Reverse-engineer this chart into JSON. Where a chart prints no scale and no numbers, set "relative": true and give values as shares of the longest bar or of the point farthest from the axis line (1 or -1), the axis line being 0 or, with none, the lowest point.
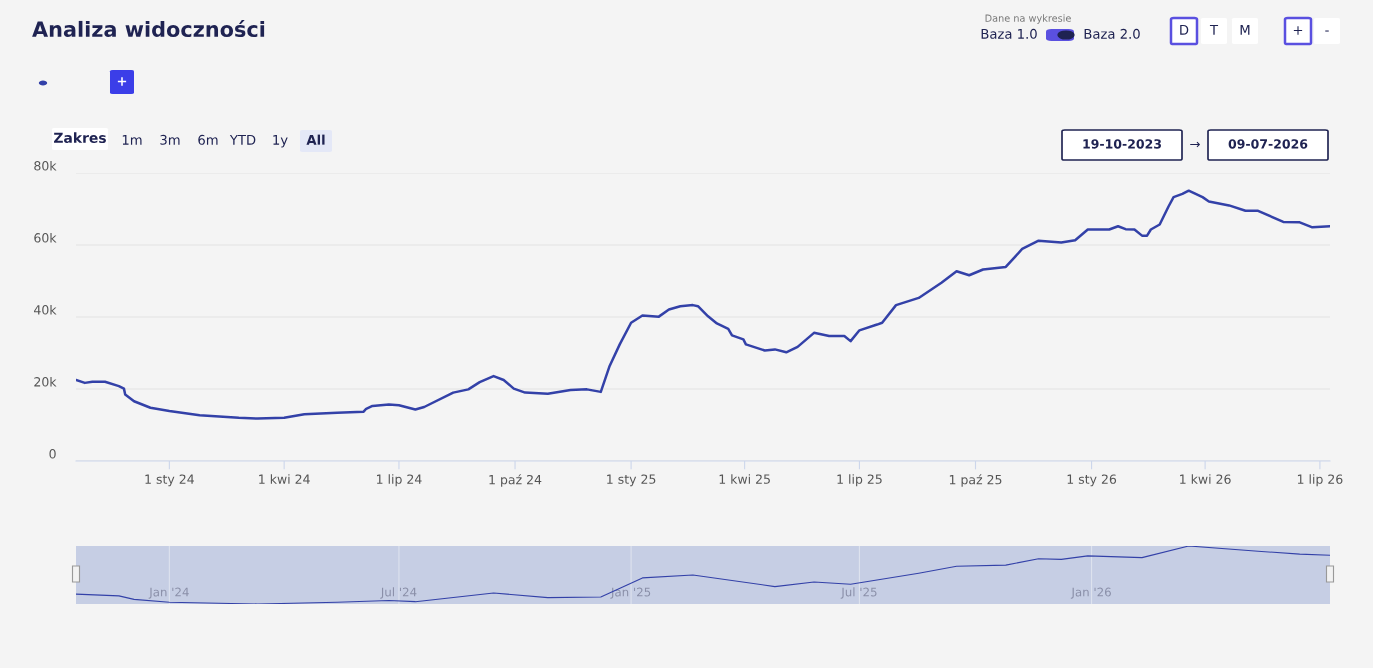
{
  "chart_data": [
    {
      "type": "line",
      "title": "Analiza widoczności",
      "annotations": [
        "Dane na wykresie",
        "Baza 1.0",
        "Baza 2.0",
        "D",
        "T",
        "M",
        "+",
        "-",
        "+",
        "Zakres",
        "1m",
        "3m",
        "6m",
        "YTD",
        "1y",
        "All",
        "19-10-2023",
        "→",
        "09-07-2026"
      ],
      "x": [
        "2023-10-19",
        "2023-10-26",
        "2023-11-01",
        "2023-11-11",
        "2023-11-22",
        "2023-11-26",
        "2023-11-27",
        "2023-12-04",
        "2023-12-17",
        "2024-01-01",
        "2024-01-25",
        "2024-02-25",
        "2024-03-11",
        "2024-04-01",
        "2024-04-17",
        "2024-05-13",
        "2024-06-03",
        "2024-06-05",
        "2024-06-10",
        "2024-06-23",
        "2024-07-01",
        "2024-07-14",
        "2024-07-21",
        "2024-08-13",
        "2024-08-25",
        "2024-09-03",
        "2024-09-14",
        "2024-09-22",
        "2024-09-30",
        "2024-10-09",
        "2024-10-27",
        "2024-11-14",
        "2024-11-27",
        "2024-12-08",
        "2024-12-15",
        "2024-12-23",
        "2025-01-01",
        "2025-01-10",
        "2025-01-23",
        "2025-01-31",
        "2025-02-09",
        "2025-02-19",
        "2025-02-23",
        "2025-03-03",
        "2025-03-10",
        "2025-03-19",
        "2025-03-22",
        "2025-03-31",
        "2025-04-02",
        "2025-04-17",
        "2025-04-25",
        "2025-05-04",
        "2025-05-13",
        "2025-05-26",
        "2025-06-07",
        "2025-06-19",
        "2025-06-24",
        "2025-07-01",
        "2025-07-15",
        "2025-07-19",
        "2025-07-30",
        "2025-08-17",
        "2025-09-04",
        "2025-09-16",
        "2025-09-26",
        "2025-10-07",
        "2025-10-25",
        "2025-11-07",
        "2025-11-20",
        "2025-12-08",
        "2025-12-19",
        "2025-12-29",
        "2026-01-15",
        "2026-01-22",
        "2026-01-28",
        "2026-02-04",
        "2026-02-10",
        "2026-02-14",
        "2026-02-17",
        "2026-02-24",
        "2026-03-03",
        "2026-03-07",
        "2026-03-14",
        "2026-03-19",
        "2026-03-30",
        "2026-04-04",
        "2026-04-20",
        "2026-05-03",
        "2026-05-13",
        "2026-06-02",
        "2026-06-15",
        "2026-06-25",
        "2026-07-09"
      ],
      "series": [
        {
          "color": "#3341a8",
          "values": [
            22500,
            21700,
            22000,
            22000,
            20800,
            20100,
            18500,
            16600,
            14800,
            13900,
            12700,
            12000,
            11800,
            12000,
            13000,
            13400,
            13700,
            14500,
            15300,
            15700,
            15500,
            14300,
            15000,
            19000,
            19900,
            21900,
            23600,
            22500,
            20100,
            19000,
            18700,
            19700,
            19900,
            19200,
            26400,
            32400,
            38400,
            40400,
            40100,
            42100,
            43000,
            43300,
            43000,
            40200,
            38200,
            36700,
            34900,
            33800,
            32400,
            30700,
            31000,
            30200,
            31700,
            35600,
            34700,
            34700,
            33300,
            36300,
            37900,
            38400,
            43300,
            45300,
            49500,
            52700,
            51600,
            53200,
            53900,
            58900,
            61200,
            60700,
            61300,
            64300,
            64300,
            65200,
            64400,
            64300,
            62600,
            62600,
            64300,
            65700,
            70700,
            73300,
            74200,
            75100,
            73300,
            72100,
            71000,
            69500,
            69500,
            66400,
            66300,
            64900,
            65200
          ]
        }
      ],
      "xlim": [
        "2023-10-19",
        "2026-07-09"
      ],
      "xticks": [
        {
          "value": "2024-01-01",
          "label": "1 sty 24"
        },
        {
          "value": "2024-04-01",
          "label": "1 kwi 24"
        },
        {
          "value": "2024-07-01",
          "label": "1 lip 24"
        },
        {
          "value": "2024-10-01",
          "label": "1 paź 24"
        },
        {
          "value": "2025-01-01",
          "label": "1 sty 25"
        },
        {
          "value": "2025-04-01",
          "label": "1 kwi 25"
        },
        {
          "value": "2025-07-01",
          "label": "1 lip 25"
        },
        {
          "value": "2025-10-01",
          "label": "1 paź 25"
        },
        {
          "value": "2026-01-01",
          "label": "1 sty 26"
        },
        {
          "value": "2026-04-01",
          "label": "1 kwi 26"
        },
        {
          "value": "2026-07-01",
          "label": "1 lip 26"
        }
      ],
      "ylim": [
        0,
        80000
      ],
      "yticks": [
        0,
        {
          "value": 20000,
          "label": "20k"
        },
        {
          "value": 40000,
          "label": "40k"
        },
        {
          "value": 60000,
          "label": "60k"
        },
        {
          "value": 80000,
          "label": "80k"
        }
      ],
      "grid": "y",
      "marker": "none",
      "line_style": "solid"
    },
    {
      "type": "line",
      "relative": true,
      "x": [
        "2023-10-19",
        "2023-11-22",
        "2023-12-04",
        "2024-01-01",
        "2024-03-11",
        "2024-05-13",
        "2024-06-23",
        "2024-07-14",
        "2024-09-14",
        "2024-10-27",
        "2024-12-08",
        "2025-01-10",
        "2025-02-19",
        "2025-04-25",
        "2025-05-26",
        "2025-06-24",
        "2025-08-17",
        "2025-09-16",
        "2025-10-25",
        "2025-11-20",
        "2025-12-08",
        "2025-12-29",
        "2026-02-10",
        "2026-03-19",
        "2026-05-13",
        "2026-06-15",
        "2026-07-09"
      ],
      "series": [
        {
          "color": "#3341a8",
          "values": [
            0.17,
            0.14,
            0.08,
            0.03,
            0.0,
            0.03,
            0.06,
            0.04,
            0.19,
            0.11,
            0.12,
            0.45,
            0.5,
            0.3,
            0.38,
            0.34,
            0.53,
            0.65,
            0.67,
            0.78,
            0.77,
            0.83,
            0.8,
            1.0,
            0.91,
            0.86,
            0.84
          ]
        }
      ],
      "xlim": [
        "2023-10-19",
        "2026-07-09"
      ],
      "xticks": [
        {
          "value": "2024-01-01",
          "label": "Jan '24"
        },
        {
          "value": "2024-07-01",
          "label": "Jul '24"
        },
        {
          "value": "2025-01-01",
          "label": "Jan '25"
        },
        {
          "value": "2025-07-01",
          "label": "Jul '25"
        },
        {
          "value": "2026-01-01",
          "label": "Jan '26"
        }
      ],
      "grid": "x",
      "marker": "none",
      "line_style": "solid"
    }
  ]
}
